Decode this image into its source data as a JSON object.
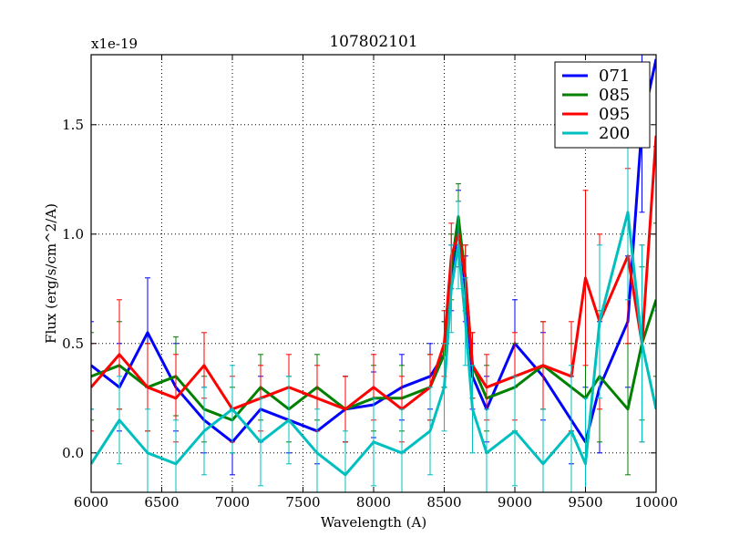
{
  "chart_data": {
    "type": "line",
    "title": "107802101",
    "xlabel": "Wavelength (A)",
    "ylabel": "Flux (erg/s/cm^2/A)",
    "y_multiplier": "x1e-19",
    "xlim": [
      6000,
      10000
    ],
    "ylim": [
      -0.18,
      1.82
    ],
    "xticks": [
      6000,
      6500,
      7000,
      7500,
      8000,
      8500,
      9000,
      9500,
      10000
    ],
    "xtick_labels": [
      "6000",
      "6500",
      "7000",
      "7500",
      "8000",
      "8500",
      "9000",
      "9500",
      "10000"
    ],
    "yticks": [
      0.0,
      0.5,
      1.0,
      1.5
    ],
    "ytick_labels": [
      "0.0",
      "0.5",
      "1.0",
      "1.5"
    ],
    "grid": true,
    "legend_position": "top-right",
    "errorbars": true,
    "series": [
      {
        "name": "071",
        "color": "#0000ff",
        "x": [
          6000,
          6200,
          6400,
          6600,
          6800,
          7000,
          7200,
          7400,
          7600,
          7800,
          8000,
          8200,
          8400,
          8500,
          8550,
          8600,
          8650,
          8700,
          8800,
          9000,
          9200,
          9400,
          9500,
          9600,
          9800,
          9900,
          10000
        ],
        "y": [
          0.4,
          0.3,
          0.55,
          0.3,
          0.15,
          0.05,
          0.2,
          0.15,
          0.1,
          0.2,
          0.22,
          0.3,
          0.35,
          0.45,
          0.8,
          1.05,
          0.75,
          0.35,
          0.2,
          0.5,
          0.35,
          0.15,
          0.05,
          0.3,
          0.6,
          1.5,
          1.8
        ],
        "err": [
          0.2,
          0.2,
          0.25,
          0.2,
          0.15,
          0.15,
          0.15,
          0.15,
          0.15,
          0.15,
          0.15,
          0.15,
          0.15,
          0.15,
          0.15,
          0.15,
          0.15,
          0.15,
          0.15,
          0.2,
          0.2,
          0.2,
          0.25,
          0.3,
          0.3,
          0.4,
          0.4
        ]
      },
      {
        "name": "085",
        "color": "#008000",
        "x": [
          6000,
          6200,
          6400,
          6600,
          6800,
          7000,
          7200,
          7400,
          7600,
          7800,
          8000,
          8200,
          8400,
          8500,
          8550,
          8600,
          8650,
          8700,
          8800,
          9000,
          9200,
          9400,
          9500,
          9600,
          9800,
          9900,
          10000
        ],
        "y": [
          0.35,
          0.4,
          0.3,
          0.35,
          0.2,
          0.15,
          0.3,
          0.2,
          0.3,
          0.2,
          0.25,
          0.25,
          0.3,
          0.45,
          0.85,
          1.08,
          0.8,
          0.4,
          0.25,
          0.3,
          0.4,
          0.3,
          0.25,
          0.35,
          0.2,
          0.5,
          0.7
        ],
        "err": [
          0.2,
          0.2,
          0.2,
          0.18,
          0.15,
          0.15,
          0.15,
          0.15,
          0.15,
          0.15,
          0.15,
          0.15,
          0.15,
          0.15,
          0.15,
          0.15,
          0.15,
          0.15,
          0.15,
          0.2,
          0.2,
          0.2,
          0.25,
          0.3,
          0.3,
          0.35,
          0.35
        ]
      },
      {
        "name": "095",
        "color": "#ff0000",
        "x": [
          6000,
          6200,
          6400,
          6600,
          6800,
          7000,
          7200,
          7400,
          7600,
          7800,
          8000,
          8200,
          8400,
          8500,
          8550,
          8600,
          8650,
          8700,
          8800,
          9000,
          9200,
          9400,
          9500,
          9600,
          9800,
          9900,
          10000
        ],
        "y": [
          0.3,
          0.45,
          0.3,
          0.25,
          0.4,
          0.2,
          0.25,
          0.3,
          0.25,
          0.2,
          0.3,
          0.2,
          0.3,
          0.5,
          0.9,
          1.0,
          0.8,
          0.4,
          0.3,
          0.35,
          0.4,
          0.35,
          0.8,
          0.6,
          0.9,
          0.5,
          1.45
        ],
        "err": [
          0.2,
          0.25,
          0.2,
          0.2,
          0.15,
          0.15,
          0.15,
          0.15,
          0.15,
          0.15,
          0.15,
          0.15,
          0.15,
          0.15,
          0.15,
          0.15,
          0.15,
          0.15,
          0.15,
          0.2,
          0.2,
          0.25,
          0.4,
          0.4,
          0.4,
          0.45,
          0.45
        ]
      },
      {
        "name": "200",
        "color": "#00bfbf",
        "x": [
          6000,
          6200,
          6400,
          6600,
          6800,
          7000,
          7200,
          7400,
          7600,
          7800,
          8000,
          8200,
          8400,
          8500,
          8550,
          8600,
          8650,
          8700,
          8800,
          9000,
          9200,
          9400,
          9500,
          9600,
          9800,
          9900,
          10000
        ],
        "y": [
          -0.05,
          0.15,
          0.0,
          -0.05,
          0.1,
          0.2,
          0.05,
          0.15,
          0.0,
          -0.1,
          0.05,
          0.0,
          0.1,
          0.3,
          0.75,
          0.95,
          0.6,
          0.2,
          0.0,
          0.1,
          -0.05,
          0.1,
          -0.05,
          0.6,
          1.1,
          0.5,
          0.2
        ],
        "err": [
          0.25,
          0.2,
          0.2,
          0.2,
          0.2,
          0.2,
          0.2,
          0.2,
          0.2,
          0.2,
          0.2,
          0.2,
          0.2,
          0.2,
          0.2,
          0.2,
          0.2,
          0.2,
          0.2,
          0.25,
          0.25,
          0.3,
          0.3,
          0.35,
          0.4,
          0.45,
          0.45
        ]
      }
    ]
  }
}
